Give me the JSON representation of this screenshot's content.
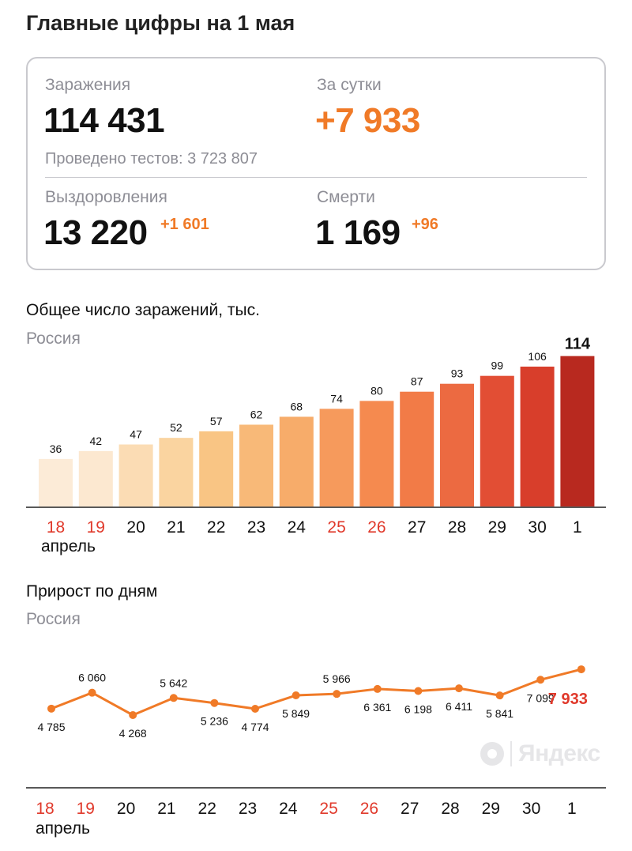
{
  "header": {
    "title": "Главные цифры на 1 мая"
  },
  "summary": {
    "infections_label": "Заражения",
    "infections_value": "114 431",
    "daily_label": "За сутки",
    "daily_value": "+7 933",
    "tests_text": "Проведено тестов: 3 723 807",
    "recovered_label": "Выздоровления",
    "recovered_value": "13 220",
    "recovered_delta": "+1 601",
    "deaths_label": "Смерти",
    "deaths_value": "1 169",
    "deaths_delta": "+96"
  },
  "colors": {
    "accent": "#f07a27",
    "weekend": "#e0392b",
    "muted": "#8d8d95"
  },
  "logo": {
    "icon": "yandex-logo-icon",
    "text": "Яндекс"
  },
  "chart_data": [
    {
      "type": "bar",
      "title": "Общее число заражений, тыс.",
      "subtitle": "Россия",
      "categories": [
        "18",
        "19",
        "20",
        "21",
        "22",
        "23",
        "24",
        "25",
        "26",
        "27",
        "28",
        "29",
        "30",
        "1"
      ],
      "weekend": [
        true,
        true,
        false,
        false,
        false,
        false,
        false,
        true,
        true,
        false,
        false,
        false,
        false,
        false
      ],
      "month_label": "апрель",
      "values": [
        36,
        42,
        47,
        52,
        57,
        62,
        68,
        74,
        80,
        87,
        93,
        99,
        106,
        114
      ],
      "labels": [
        "36",
        "42",
        "47",
        "52",
        "57",
        "62",
        "68",
        "74",
        "80",
        "87",
        "93",
        "99",
        "106",
        "114"
      ],
      "bar_colors": [
        "#fcebd7",
        "#fce8d0",
        "#fbdcb4",
        "#fad4a0",
        "#f9c584",
        "#f8b978",
        "#f7ac6a",
        "#f69a5c",
        "#f58a4f",
        "#f27b47",
        "#ec6a41",
        "#e24e34",
        "#d83e2b",
        "#b8291f"
      ]
    },
    {
      "type": "line",
      "title": "Прирост по дням",
      "subtitle": "Россия",
      "categories": [
        "18",
        "19",
        "20",
        "21",
        "22",
        "23",
        "24",
        "25",
        "26",
        "27",
        "28",
        "29",
        "30",
        "1"
      ],
      "weekend": [
        true,
        true,
        false,
        false,
        false,
        false,
        false,
        true,
        true,
        false,
        false,
        false,
        false,
        false
      ],
      "month_label": "апрель",
      "values": [
        4785,
        6060,
        4268,
        5642,
        5236,
        4774,
        5849,
        5966,
        6361,
        6198,
        6411,
        5841,
        7099,
        7933
      ],
      "labels": [
        "4 785",
        "6 060",
        "4 268",
        "5 642",
        "5 236",
        "4 774",
        "5 849",
        "5 966",
        "6 361",
        "6 198",
        "6 411",
        "5 841",
        "7 099",
        "7 933"
      ],
      "label_side": [
        "below",
        "above",
        "below",
        "above",
        "below",
        "below",
        "below",
        "above",
        "below",
        "below",
        "below",
        "below",
        "below",
        "right"
      ],
      "color": "#f07a27"
    }
  ]
}
